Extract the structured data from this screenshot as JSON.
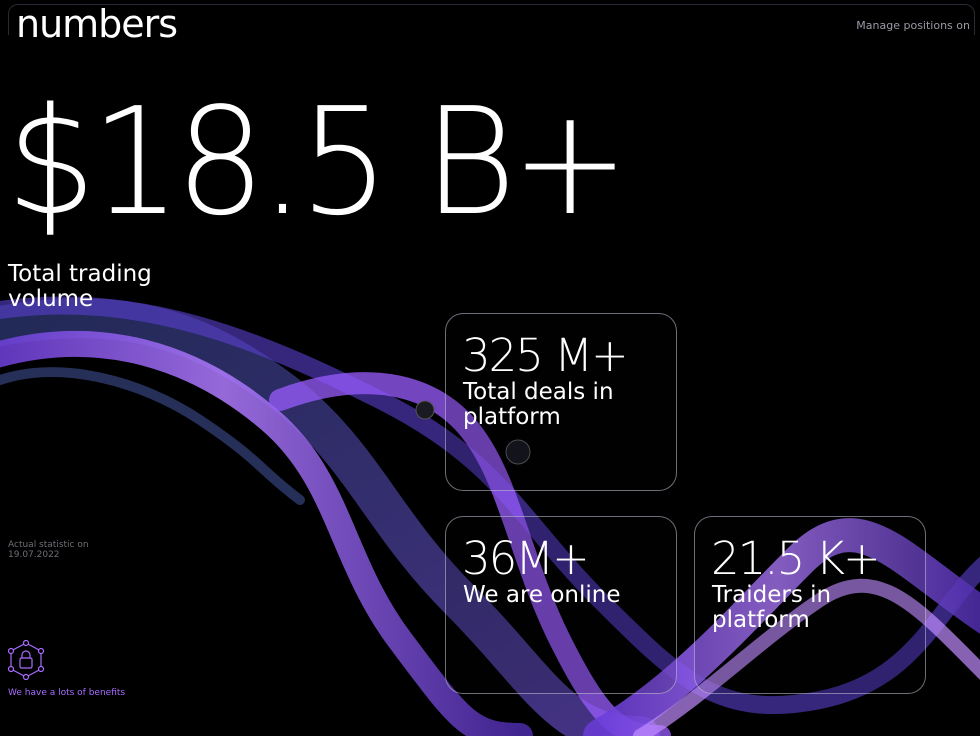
{
  "header": {
    "title": "numbers",
    "nav_link": "Manage positions on"
  },
  "hero": {
    "value": "$18.5 B+",
    "label": "Total trading volume"
  },
  "stats": [
    {
      "value": "325 M+",
      "label": "Total deals in platform"
    },
    {
      "value": "36M+",
      "label": "We are online"
    },
    {
      "value": "21.5 K+",
      "label": "Traiders in platform"
    }
  ],
  "note": "Actual statistic on 19.07.2022",
  "benefits": {
    "label": "We have a lots of benefits",
    "icon": "lock-network-icon"
  },
  "colors": {
    "background": "#000000",
    "accent": "#a86cff",
    "ribbon": "#8b4dff"
  }
}
